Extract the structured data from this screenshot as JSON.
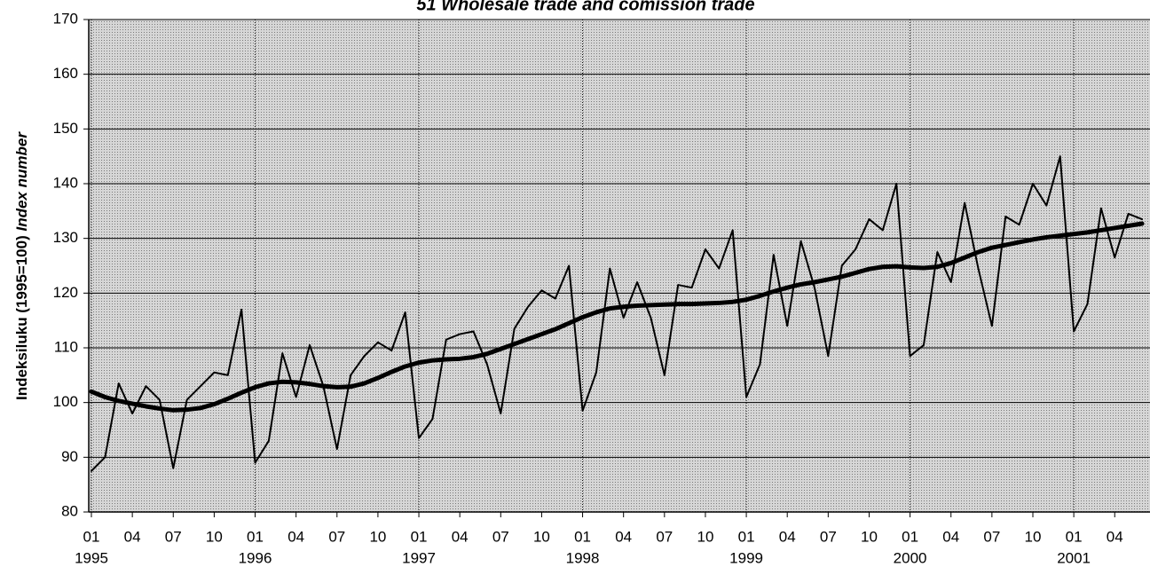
{
  "chart_data": {
    "type": "line",
    "title": "51 Wholesale trade and comission trade",
    "y_label": "Indeksiluku (1995=100)",
    "y_label_en": "Index number",
    "categories": [
      "1995-01",
      "1995-02",
      "1995-03",
      "1995-04",
      "1995-05",
      "1995-06",
      "1995-07",
      "1995-08",
      "1995-09",
      "1995-10",
      "1995-11",
      "1995-12",
      "1996-01",
      "1996-02",
      "1996-03",
      "1996-04",
      "1996-05",
      "1996-06",
      "1996-07",
      "1996-08",
      "1996-09",
      "1996-10",
      "1996-11",
      "1996-12",
      "1997-01",
      "1997-02",
      "1997-03",
      "1997-04",
      "1997-05",
      "1997-06",
      "1997-07",
      "1997-08",
      "1997-09",
      "1997-10",
      "1997-11",
      "1997-12",
      "1998-01",
      "1998-02",
      "1998-03",
      "1998-04",
      "1998-05",
      "1998-06",
      "1998-07",
      "1998-08",
      "1998-09",
      "1998-10",
      "1998-11",
      "1998-12",
      "1999-01",
      "1999-02",
      "1999-03",
      "1999-04",
      "1999-05",
      "1999-06",
      "1999-07",
      "1999-08",
      "1999-09",
      "1999-10",
      "1999-11",
      "1999-12",
      "2000-01",
      "2000-02",
      "2000-03",
      "2000-04",
      "2000-05",
      "2000-06",
      "2000-07",
      "2000-08",
      "2000-09",
      "2000-10",
      "2000-11",
      "2000-12",
      "2001-01",
      "2001-02",
      "2001-03",
      "2001-04",
      "2001-05",
      "2001-06"
    ],
    "series": [
      {
        "color": "#000000",
        "width": 2,
        "values": [
          87.5,
          90,
          103.5,
          98,
          103,
          100.5,
          88,
          100.5,
          103,
          105.5,
          105,
          117,
          89,
          93,
          109,
          101,
          110.5,
          103,
          91.5,
          105,
          108.5,
          111,
          109.5,
          116.5,
          93.5,
          97,
          111.5,
          112.5,
          113,
          107,
          98,
          113.5,
          117.5,
          120.5,
          119,
          125,
          98.5,
          105.5,
          124.5,
          115.5,
          122,
          115.5,
          105,
          121.5,
          121,
          128,
          124.5,
          131.5,
          101,
          107,
          127,
          114,
          129.5,
          121,
          108.5,
          125,
          128,
          133.5,
          131.5,
          140,
          108.5,
          110.5,
          127.5,
          122,
          136.5,
          124.5,
          114,
          134,
          132.5,
          140,
          136,
          145,
          113,
          118,
          135.5,
          126.5,
          134.5,
          133.5
        ]
      },
      {
        "color": "#000000",
        "width": 5,
        "values": [
          102,
          101,
          100.3,
          99.8,
          99.3,
          98.9,
          98.6,
          98.7,
          99,
          99.7,
          100.7,
          101.8,
          102.8,
          103.5,
          103.8,
          103.7,
          103.4,
          103,
          102.8,
          102.9,
          103.5,
          104.5,
          105.6,
          106.6,
          107.3,
          107.7,
          107.9,
          108,
          108.3,
          108.9,
          109.8,
          110.7,
          111.6,
          112.5,
          113.4,
          114.5,
          115.6,
          116.5,
          117.2,
          117.5,
          117.7,
          117.8,
          117.9,
          118,
          118,
          118.1,
          118.2,
          118.4,
          118.8,
          119.5,
          120.3,
          121,
          121.6,
          122,
          122.5,
          123,
          123.7,
          124.4,
          124.8,
          124.9,
          124.7,
          124.6,
          124.8,
          125.5,
          126.5,
          127.5,
          128.3,
          128.8,
          129.3,
          129.8,
          130.2,
          130.5,
          130.8,
          131.1,
          131.5,
          131.9,
          132.3,
          132.7
        ]
      }
    ],
    "ylim": [
      80,
      170
    ],
    "yticks": [
      80,
      90,
      100,
      110,
      120,
      130,
      140,
      150,
      160,
      170
    ],
    "xticks": [
      {
        "value": "1995-01",
        "label": "01"
      },
      {
        "value": "1995-04",
        "label": "04"
      },
      {
        "value": "1995-07",
        "label": "07"
      },
      {
        "value": "1995-10",
        "label": "10"
      },
      {
        "value": "1996-01",
        "label": "01"
      },
      {
        "value": "1996-04",
        "label": "04"
      },
      {
        "value": "1996-07",
        "label": "07"
      },
      {
        "value": "1996-10",
        "label": "10"
      },
      {
        "value": "1997-01",
        "label": "01"
      },
      {
        "value": "1997-04",
        "label": "04"
      },
      {
        "value": "1997-07",
        "label": "07"
      },
      {
        "value": "1997-10",
        "label": "10"
      },
      {
        "value": "1998-01",
        "label": "01"
      },
      {
        "value": "1998-04",
        "label": "04"
      },
      {
        "value": "1998-07",
        "label": "07"
      },
      {
        "value": "1998-10",
        "label": "10"
      },
      {
        "value": "1999-01",
        "label": "01"
      },
      {
        "value": "1999-04",
        "label": "04"
      },
      {
        "value": "1999-07",
        "label": "07"
      },
      {
        "value": "1999-10",
        "label": "10"
      },
      {
        "value": "2000-01",
        "label": "01"
      },
      {
        "value": "2000-04",
        "label": "04"
      },
      {
        "value": "2000-07",
        "label": "07"
      },
      {
        "value": "2000-10",
        "label": "10"
      },
      {
        "value": "2001-01",
        "label": "01"
      },
      {
        "value": "2001-04",
        "label": "04"
      }
    ],
    "year_ticks": [
      {
        "value": "1995-01",
        "label": "1995"
      },
      {
        "value": "1996-01",
        "label": "1996"
      },
      {
        "value": "1997-01",
        "label": "1997"
      },
      {
        "value": "1998-01",
        "label": "1998"
      },
      {
        "value": "1999-01",
        "label": "1999"
      },
      {
        "value": "2000-01",
        "label": "2000"
      },
      {
        "value": "2001-01",
        "label": "2001"
      }
    ],
    "grid": true,
    "background": "#c4c4c4"
  }
}
